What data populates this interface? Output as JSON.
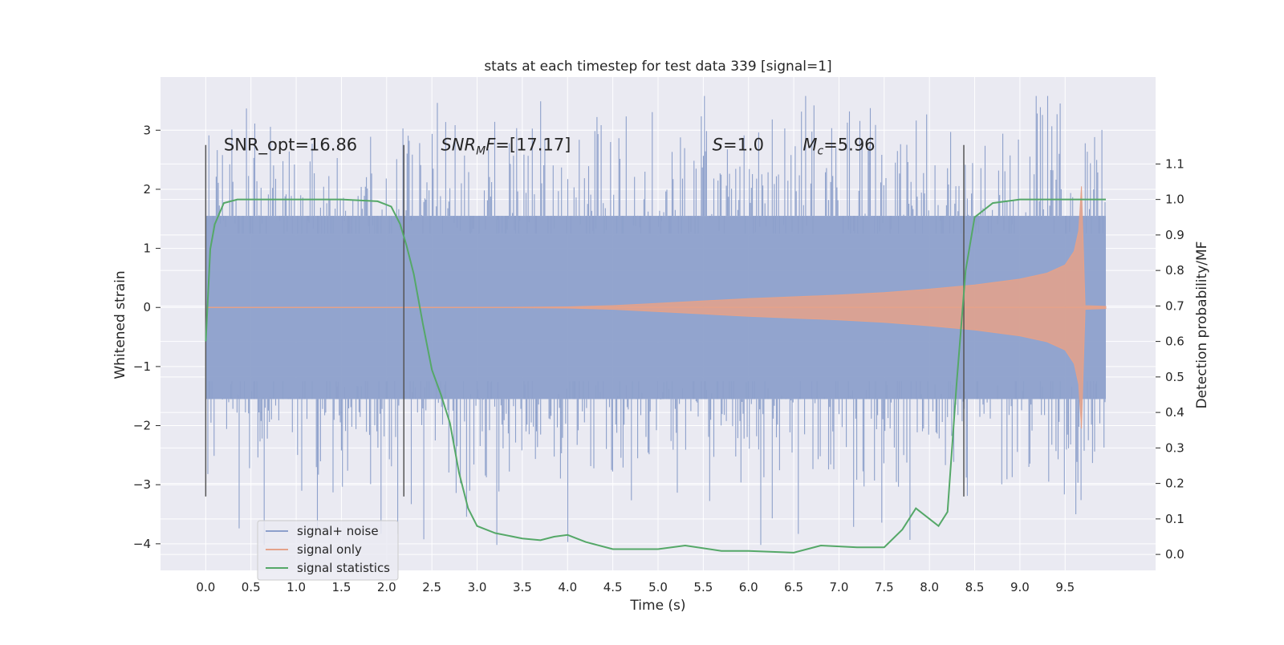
{
  "chart_data": {
    "type": "line",
    "title": "stats at each timestep for test data 339 [signal=1]",
    "xlabel": "Time (s)",
    "ylabel": "Whitened strain",
    "y2label": "Detection probability/MF",
    "xlim": [
      -0.5,
      10.5
    ],
    "ylim": [
      -4.45,
      3.9
    ],
    "y2lim": [
      -0.045,
      1.345
    ],
    "xticks": [
      0.0,
      0.5,
      1.0,
      1.5,
      2.0,
      2.5,
      3.0,
      3.5,
      4.0,
      4.5,
      5.0,
      5.5,
      6.0,
      6.5,
      7.0,
      7.5,
      8.0,
      8.5,
      9.0,
      9.5
    ],
    "xtick_labels": [
      "0.0",
      "0.5",
      "1.0",
      "1.5",
      "2.0",
      "2.5",
      "3.0",
      "3.5",
      "4.0",
      "4.5",
      "5.0",
      "5.5",
      "6.0",
      "6.5",
      "7.0",
      "7.5",
      "8.0",
      "8.5",
      "9.0",
      "9.5"
    ],
    "yticks": [
      3,
      2,
      1,
      0,
      -1,
      -2,
      -3,
      -4
    ],
    "ytick_labels": [
      "3",
      "2",
      "1",
      "0",
      "−1",
      "−2",
      "−3",
      "−4"
    ],
    "y2ticks": [
      1.1,
      1.0,
      0.9,
      0.8,
      0.7,
      0.6,
      0.5,
      0.4,
      0.3,
      0.2,
      0.1,
      0.0
    ],
    "y2tick_labels": [
      "1.1",
      "1.0",
      "0.9",
      "0.8",
      "0.7",
      "0.6",
      "0.5",
      "0.4",
      "0.3",
      "0.2",
      "0.1",
      "0.0"
    ],
    "grid": true,
    "legend_position": "lower-left",
    "series": [
      {
        "name": "signal+ noise",
        "axis": "left",
        "color": "#8da0cb",
        "kind": "noise-band",
        "x_range": [
          0.0,
          9.95
        ],
        "envelope": 1.55,
        "extremes_range": [
          -4.02,
          3.58
        ],
        "seed": 339
      },
      {
        "name": "signal only",
        "axis": "left",
        "color": "#e5a28a",
        "kind": "chirp-envelope",
        "x": [
          0.0,
          2.0,
          3.0,
          4.0,
          4.5,
          5.0,
          5.5,
          6.0,
          6.5,
          7.0,
          7.5,
          8.0,
          8.5,
          9.0,
          9.3,
          9.5,
          9.6,
          9.65,
          9.68,
          9.72,
          9.95
        ],
        "amplitude": [
          0.0,
          0.0,
          0.0,
          0.01,
          0.03,
          0.07,
          0.11,
          0.15,
          0.18,
          0.21,
          0.25,
          0.31,
          0.38,
          0.48,
          0.58,
          0.72,
          0.95,
          1.3,
          2.05,
          0.03,
          0.02
        ]
      },
      {
        "name": "signal statistics",
        "axis": "right",
        "color": "#55a868",
        "kind": "line",
        "x": [
          0.0,
          0.05,
          0.1,
          0.2,
          0.35,
          0.6,
          1.0,
          1.5,
          1.9,
          2.05,
          2.15,
          2.22,
          2.3,
          2.4,
          2.5,
          2.6,
          2.7,
          2.8,
          2.9,
          3.0,
          3.2,
          3.5,
          3.7,
          3.85,
          4.0,
          4.2,
          4.5,
          5.0,
          5.3,
          5.7,
          6.0,
          6.5,
          6.8,
          7.2,
          7.5,
          7.7,
          7.85,
          8.0,
          8.1,
          8.2,
          8.3,
          8.4,
          8.5,
          8.7,
          9.0,
          9.5,
          9.95
        ],
        "y": [
          0.6,
          0.86,
          0.93,
          0.99,
          1.0,
          1.0,
          1.0,
          1.0,
          0.995,
          0.98,
          0.93,
          0.87,
          0.79,
          0.65,
          0.52,
          0.45,
          0.37,
          0.23,
          0.13,
          0.08,
          0.06,
          0.045,
          0.04,
          0.05,
          0.055,
          0.035,
          0.015,
          0.015,
          0.025,
          0.01,
          0.01,
          0.005,
          0.025,
          0.02,
          0.02,
          0.07,
          0.13,
          0.1,
          0.08,
          0.12,
          0.48,
          0.8,
          0.95,
          0.99,
          1.0,
          1.0,
          1.0
        ]
      }
    ],
    "vlines": [
      {
        "x": 0.0,
        "y": [
          -3.2,
          2.75
        ]
      },
      {
        "x": 2.19,
        "y": [
          -3.2,
          2.75
        ]
      },
      {
        "x": 8.38,
        "y": [
          -3.2,
          2.75
        ]
      }
    ],
    "annotations": [
      {
        "id": "snr-opt",
        "text": "SNR_opt=16.86",
        "x": 0.2,
        "y": 2.75
      },
      {
        "id": "snr-mf",
        "text": "[17.17]",
        "math_base": "SNR",
        "math_sub": "M",
        "math_tail": "F=",
        "x": 2.6,
        "y": 2.75
      },
      {
        "id": "s-val",
        "text": "=1.0",
        "math_base": "S",
        "x": 5.6,
        "y": 2.75
      },
      {
        "id": "mc-val",
        "text": "=5.96",
        "math_base": "M",
        "math_sub": "c",
        "x": 6.6,
        "y": 2.75
      }
    ]
  }
}
